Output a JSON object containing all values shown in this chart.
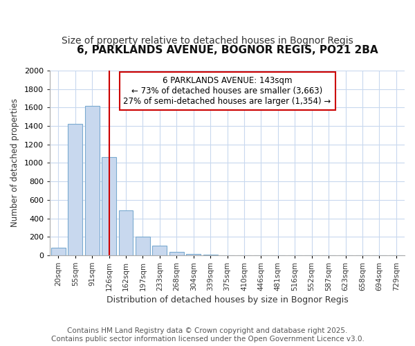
{
  "title1": "6, PARKLANDS AVENUE, BOGNOR REGIS, PO21 2BA",
  "title2": "Size of property relative to detached houses in Bognor Regis",
  "xlabel": "Distribution of detached houses by size in Bognor Regis",
  "ylabel": "Number of detached properties",
  "footnote1": "Contains HM Land Registry data © Crown copyright and database right 2025.",
  "footnote2": "Contains public sector information licensed under the Open Government Licence v3.0.",
  "bar_labels": [
    "20sqm",
    "55sqm",
    "91sqm",
    "126sqm",
    "162sqm",
    "197sqm",
    "233sqm",
    "268sqm",
    "304sqm",
    "339sqm",
    "375sqm",
    "410sqm",
    "446sqm",
    "481sqm",
    "516sqm",
    "552sqm",
    "587sqm",
    "623sqm",
    "658sqm",
    "694sqm",
    "729sqm"
  ],
  "bar_values": [
    80,
    1420,
    1620,
    1060,
    490,
    200,
    105,
    40,
    15,
    10,
    0,
    0,
    0,
    0,
    0,
    0,
    0,
    0,
    0,
    0,
    0
  ],
  "bar_color": "#c8d8ee",
  "bar_edgecolor": "#7aaad0",
  "vline_x": 3.0,
  "vline_color": "#cc0000",
  "ylim": [
    0,
    2000
  ],
  "yticks": [
    0,
    200,
    400,
    600,
    800,
    1000,
    1200,
    1400,
    1600,
    1800,
    2000
  ],
  "annotation_title": "6 PARKLANDS AVENUE: 143sqm",
  "annotation_line1": "← 73% of detached houses are smaller (3,663)",
  "annotation_line2": "27% of semi-detached houses are larger (1,354) →",
  "annotation_box_color": "#cc0000",
  "plot_bg": "#ffffff",
  "fig_bg": "#ffffff",
  "grid_color": "#c8d8ee",
  "title1_fontsize": 11,
  "title2_fontsize": 10,
  "footnote_fontsize": 7.5
}
